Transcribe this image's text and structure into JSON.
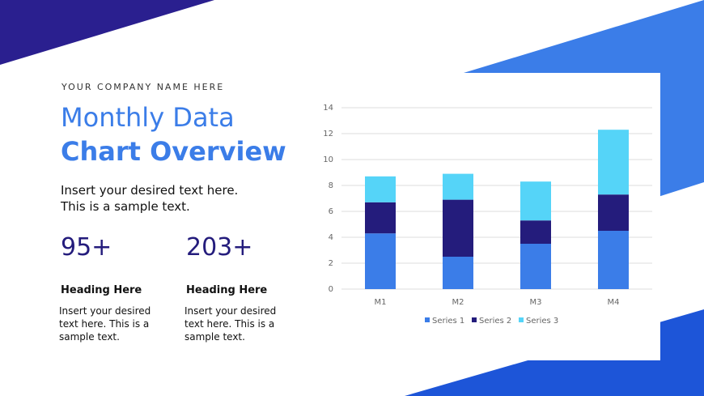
{
  "company": "YOUR COMPANY NAME HERE",
  "title_line1": "Monthly Data",
  "title_line2": "Chart Overview",
  "intro": [
    "Insert your desired text here.",
    "This is a sample text."
  ],
  "stats": [
    {
      "number": "95+",
      "heading": "Heading Here",
      "text": [
        "Insert your desired",
        "text here. This is a",
        "sample text."
      ]
    },
    {
      "number": "203+",
      "heading": "Heading Here",
      "text": [
        "Insert your desired",
        "text here. This is a",
        "sample text."
      ]
    }
  ],
  "chart_data": {
    "type": "stacked_bar",
    "categories": [
      "M1",
      "M2",
      "M3",
      "M4"
    ],
    "series": [
      {
        "name": "Series 1",
        "color": "#3b7de8",
        "values": [
          4.3,
          2.5,
          3.5,
          4.5
        ]
      },
      {
        "name": "Series 2",
        "color": "#241c7c",
        "values": [
          2.4,
          4.4,
          1.8,
          2.8
        ]
      },
      {
        "name": "Series 3",
        "color": "#55d4f8",
        "values": [
          2,
          2,
          3,
          5
        ]
      }
    ],
    "ylim": [
      0,
      14
    ],
    "yticks": [
      0,
      2,
      4,
      6,
      8,
      10,
      12,
      14
    ],
    "grid": true,
    "legend": "bottom"
  }
}
